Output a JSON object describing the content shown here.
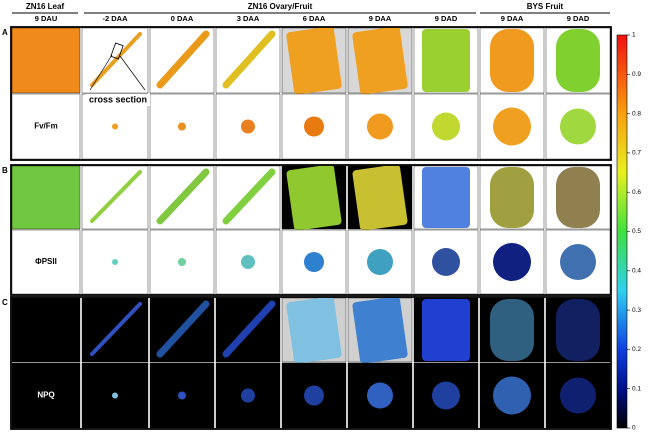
{
  "header": {
    "groups": [
      "ZN16 Leaf",
      "ZN16 Ovary/Fruit",
      "BYS Fruit"
    ],
    "columns": [
      "9 DAU",
      "-2 DAA",
      "0 DAA",
      "3 DAA",
      "6 DAA",
      "9 DAA",
      "9 DAD",
      "9 DAA",
      "9 DAD"
    ]
  },
  "panels": [
    {
      "letter": "A",
      "label": "Fv/Fm"
    },
    {
      "letter": "B",
      "label": "ΦPSII"
    },
    {
      "letter": "C",
      "label": "NPQ"
    }
  ],
  "annotation": "cross section",
  "colorbar": {
    "ticks": [
      0,
      0.1,
      0.2,
      0.3,
      0.4,
      0.5,
      0.6,
      0.7,
      0.8,
      0.9,
      1
    ]
  }
}
